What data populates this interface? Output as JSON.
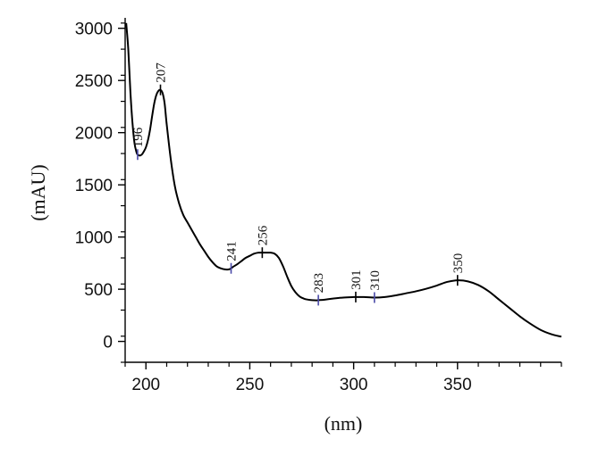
{
  "chart_data": {
    "type": "line",
    "title": "",
    "xlabel": "(nm)",
    "ylabel": "(mAU)",
    "xlim": [
      190,
      400
    ],
    "ylim": [
      -200,
      3100
    ],
    "x_ticks": [
      200,
      250,
      300,
      350
    ],
    "x_tick_labels": [
      "200",
      "250",
      "300",
      "350"
    ],
    "x_minor_step": 10,
    "y_ticks": [
      0,
      500,
      1000,
      1500,
      2000,
      2500,
      3000
    ],
    "y_tick_labels": [
      "0",
      "500",
      "1000",
      "1500",
      "2000",
      "2500",
      "3000"
    ],
    "y_minor_step": 250,
    "grid": false,
    "line_color": "#000000",
    "marker_color_valley": "#4a4aa8",
    "marker_color_peak": "#000000",
    "series": [
      {
        "x": [
          190.5,
          191.5,
          192.5,
          193.5,
          194.5,
          195.5,
          196,
          197,
          198,
          199,
          200,
          201,
          202,
          203,
          204,
          205,
          206,
          207,
          208,
          209,
          210,
          212,
          214,
          216,
          218,
          220,
          222,
          224,
          226,
          228,
          230,
          232,
          234,
          236,
          238,
          240,
          241,
          242,
          244,
          246,
          248,
          250,
          252,
          254,
          256,
          258,
          260,
          262,
          264,
          266,
          268,
          270,
          272,
          274,
          276,
          278,
          280,
          282,
          283,
          286,
          290,
          295,
          300,
          301,
          305,
          310,
          315,
          320,
          325,
          330,
          335,
          340,
          345,
          350,
          355,
          360,
          365,
          370,
          375,
          380,
          385,
          390,
          395,
          400
        ],
        "y": [
          3050,
          2800,
          2400,
          2100,
          1900,
          1810,
          1790,
          1780,
          1790,
          1820,
          1860,
          1930,
          2030,
          2160,
          2280,
          2360,
          2400,
          2410,
          2380,
          2280,
          2080,
          1740,
          1480,
          1320,
          1210,
          1140,
          1070,
          1000,
          930,
          870,
          810,
          760,
          720,
          700,
          690,
          690,
          700,
          715,
          740,
          770,
          800,
          820,
          840,
          850,
          850,
          850,
          850,
          840,
          800,
          720,
          620,
          530,
          470,
          430,
          410,
          400,
          395,
          393,
          395,
          400,
          410,
          420,
          425,
          425,
          425,
          420,
          425,
          440,
          460,
          480,
          505,
          535,
          570,
          585,
          575,
          540,
          480,
          400,
          320,
          240,
          170,
          110,
          70,
          45
        ]
      }
    ],
    "annotations": [
      {
        "text": "196",
        "x": 196,
        "y": 1790,
        "kind": "valley"
      },
      {
        "text": "207",
        "x": 207,
        "y": 2410,
        "kind": "peak"
      },
      {
        "text": "241",
        "x": 241,
        "y": 700,
        "kind": "valley"
      },
      {
        "text": "256",
        "x": 256,
        "y": 850,
        "kind": "peak"
      },
      {
        "text": "283",
        "x": 283,
        "y": 395,
        "kind": "valley"
      },
      {
        "text": "301",
        "x": 301,
        "y": 425,
        "kind": "peak"
      },
      {
        "text": "310",
        "x": 310,
        "y": 420,
        "kind": "valley"
      },
      {
        "text": "350",
        "x": 350,
        "y": 585,
        "kind": "peak"
      }
    ]
  }
}
